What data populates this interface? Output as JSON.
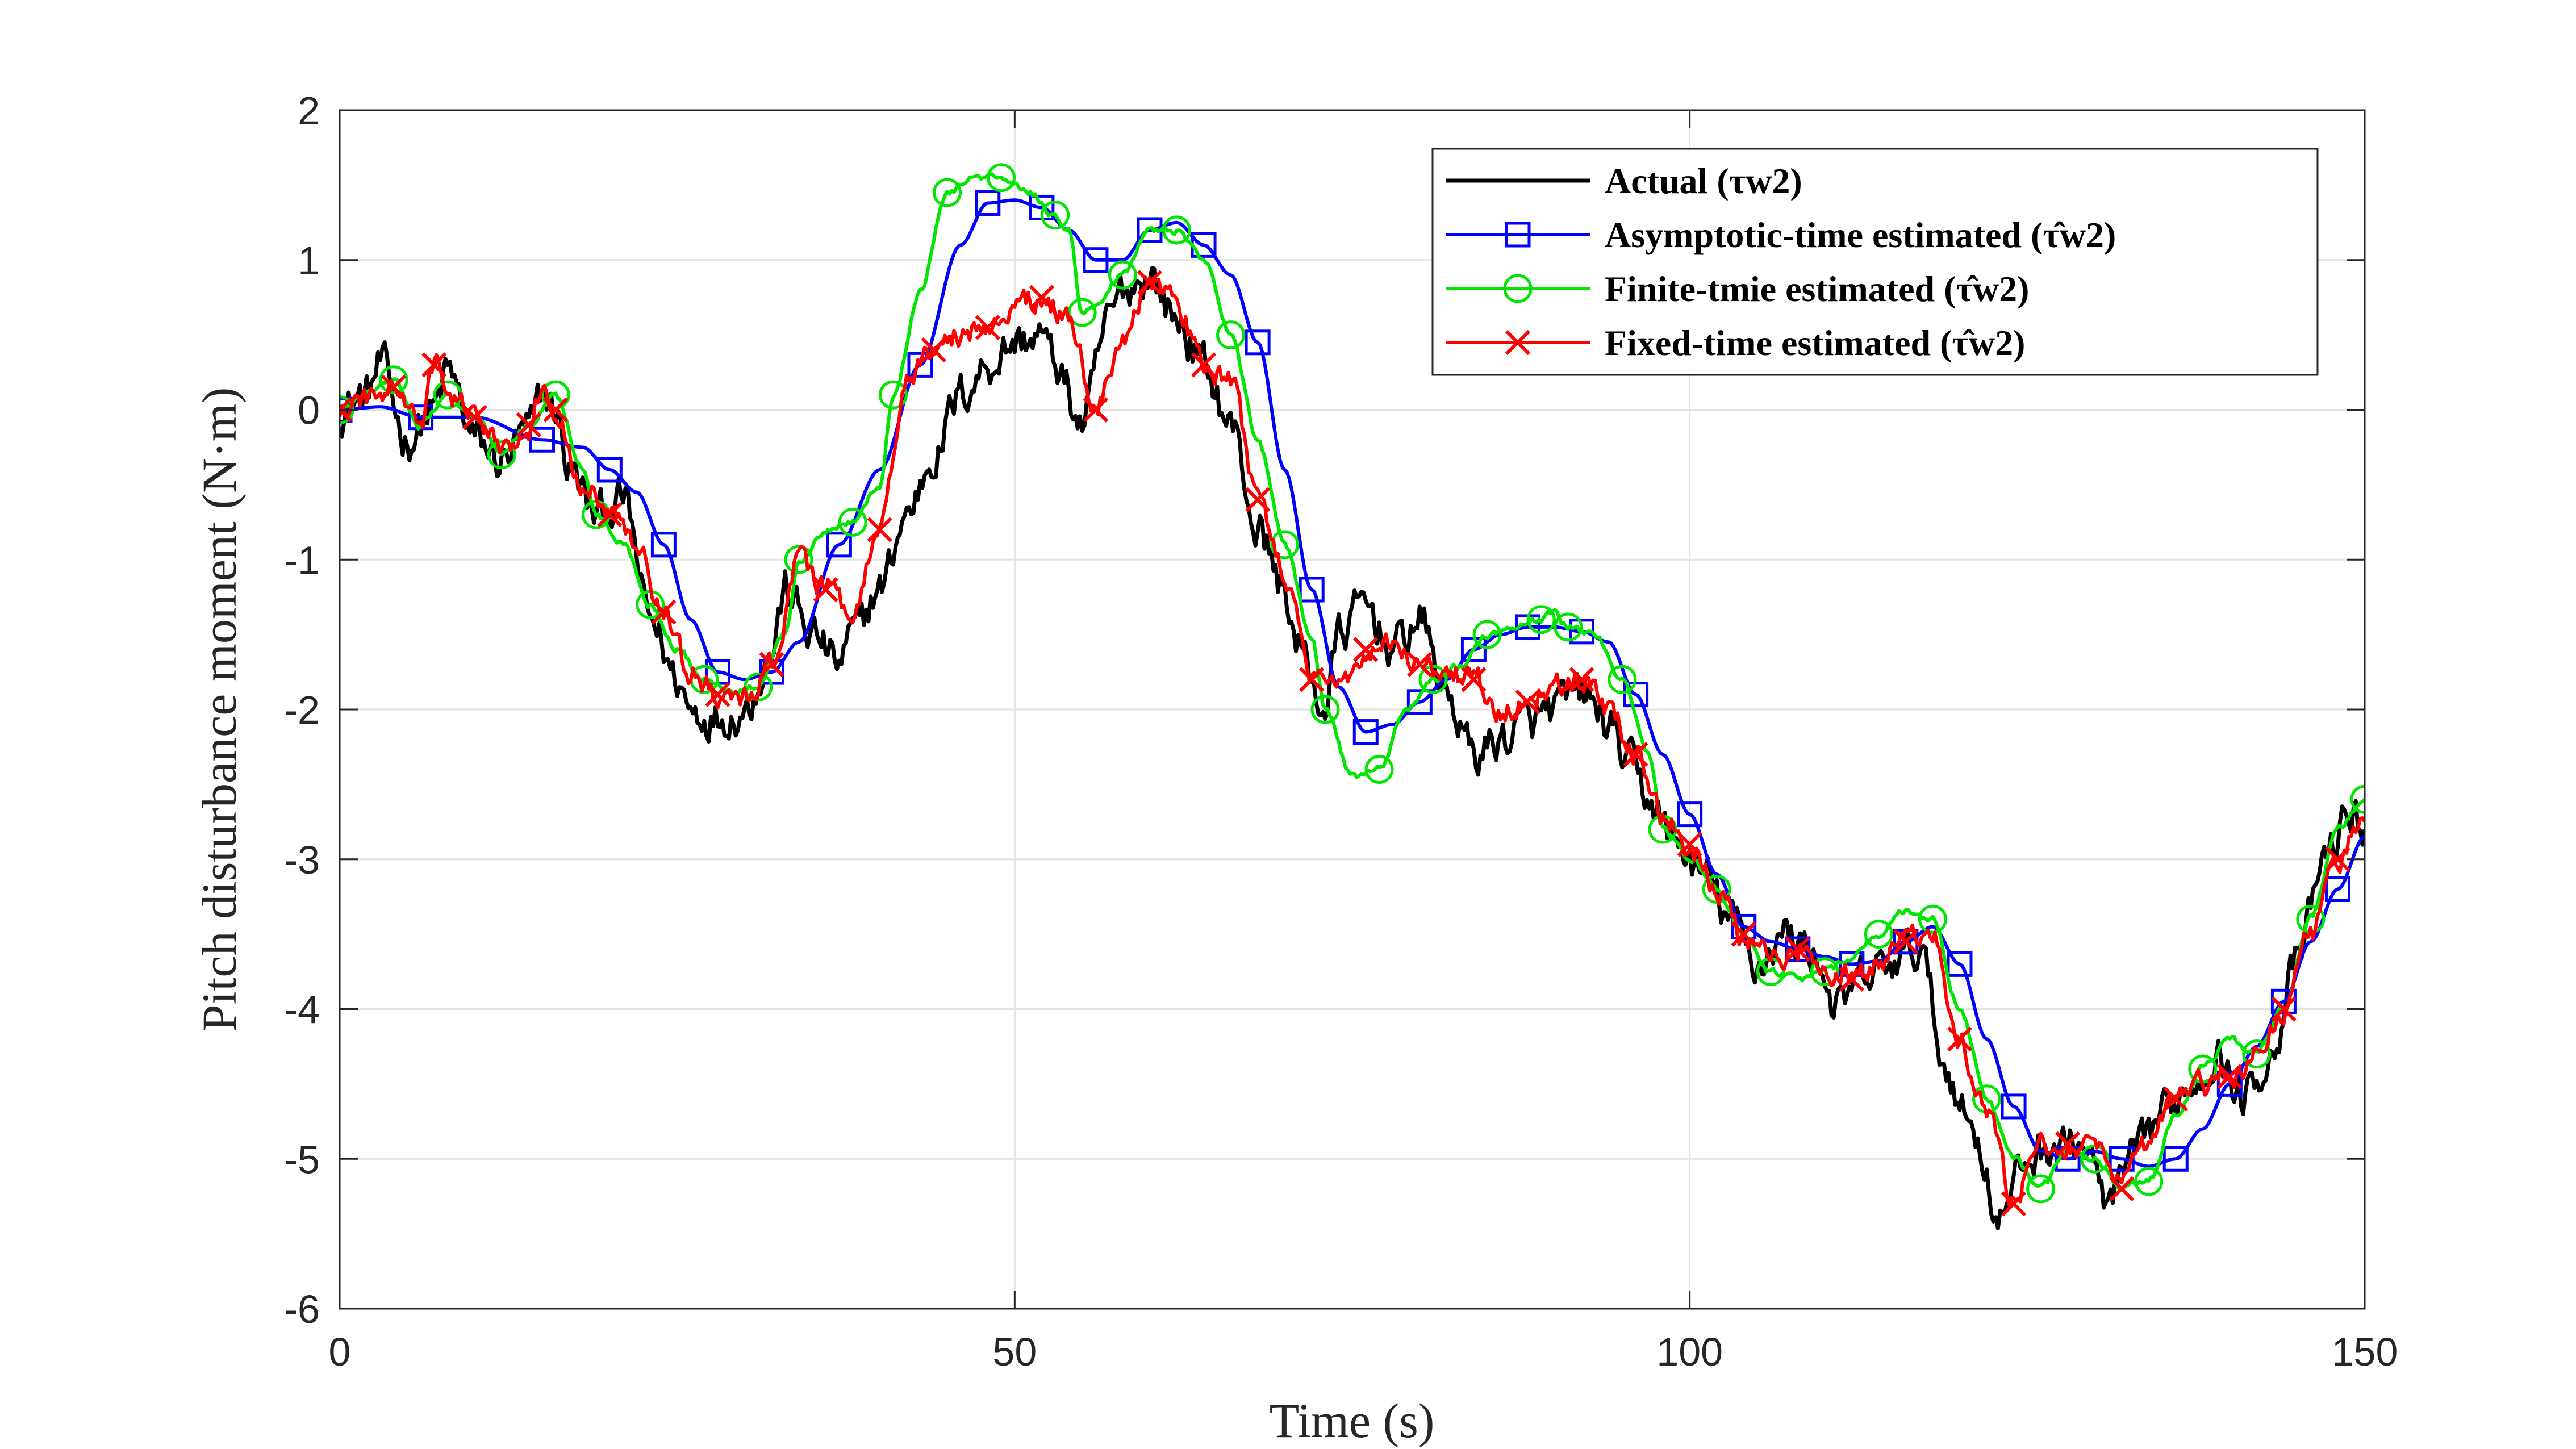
{
  "chart_data": {
    "type": "line",
    "xlabel": "Time (s)",
    "ylabel": "Pitch disturbance moment (N·m)",
    "xlim": [
      0,
      150
    ],
    "ylim": [
      -6,
      2
    ],
    "xticks": [
      0,
      50,
      100,
      150
    ],
    "yticks": [
      2,
      1,
      0,
      -1,
      -2,
      -3,
      -4,
      -5,
      -6
    ],
    "grid": true,
    "legend_position": "top-right",
    "series": [
      {
        "name": "Actual (τw2)",
        "color": "#000000",
        "marker": "none",
        "noise": 0.12,
        "x": [
          0,
          2,
          3,
          5,
          7,
          8,
          10,
          12,
          14,
          15,
          16,
          17,
          19,
          21,
          23,
          25,
          26,
          28,
          30,
          32,
          33,
          35,
          37,
          38,
          40,
          42,
          44,
          46,
          48,
          50,
          52,
          53,
          55,
          57,
          58,
          60,
          62,
          64,
          66,
          68,
          70,
          71,
          73,
          74,
          76,
          78,
          80,
          82,
          84,
          86,
          88,
          90,
          92,
          94,
          95,
          97,
          99,
          101,
          103,
          105,
          107,
          109,
          111,
          113,
          115,
          117,
          119,
          121,
          123,
          125,
          127,
          129,
          131,
          133,
          135,
          137,
          139,
          141,
          143,
          145,
          147,
          149,
          150
        ],
        "y": [
          0.0,
          0.1,
          0.3,
          -0.2,
          0.0,
          0.25,
          -0.2,
          -0.35,
          -0.15,
          0.1,
          0.0,
          -0.4,
          -0.7,
          -0.6,
          -1.4,
          -1.8,
          -2.0,
          -2.05,
          -2.0,
          -1.6,
          -1.2,
          -1.5,
          -1.7,
          -1.5,
          -1.2,
          -0.7,
          -0.3,
          0.1,
          0.3,
          0.45,
          0.5,
          0.3,
          -0.1,
          0.6,
          0.8,
          0.9,
          0.6,
          0.3,
          -0.1,
          -0.8,
          -1.2,
          -1.6,
          -2.0,
          -1.5,
          -1.3,
          -1.6,
          -1.4,
          -1.9,
          -2.3,
          -2.2,
          -2.1,
          -2.0,
          -1.9,
          -2.1,
          -2.3,
          -2.6,
          -2.9,
          -3.1,
          -3.4,
          -3.7,
          -3.5,
          -3.6,
          -4.0,
          -3.8,
          -3.7,
          -3.6,
          -4.4,
          -4.8,
          -5.4,
          -5.0,
          -4.9,
          -4.9,
          -5.3,
          -5.0,
          -4.7,
          -4.5,
          -4.3,
          -4.6,
          -4.3,
          -3.7,
          -3.0,
          -2.7,
          -2.8
        ]
      },
      {
        "name": "Asymptotic-time estimated (τ̂w2)",
        "color": "#0000FF",
        "marker": "square",
        "noise": 0,
        "x": [
          0,
          3,
          6,
          10,
          15,
          18,
          20,
          22,
          24,
          26,
          28,
          30,
          32,
          34,
          37,
          40,
          43,
          46,
          48,
          50,
          52,
          54,
          56,
          58,
          60,
          62,
          64,
          66,
          68,
          70,
          72,
          74,
          76,
          78,
          80,
          82,
          84,
          86,
          88,
          90,
          92,
          94,
          96,
          98,
          100,
          102,
          104,
          106,
          108,
          110,
          112,
          114,
          116,
          118,
          120,
          122,
          124,
          126,
          128,
          130,
          132,
          134,
          136,
          138,
          140,
          142,
          144,
          146,
          148,
          150
        ],
        "y": [
          0.0,
          0.02,
          -0.05,
          -0.05,
          -0.2,
          -0.25,
          -0.4,
          -0.55,
          -0.9,
          -1.4,
          -1.75,
          -1.8,
          -1.75,
          -1.55,
          -0.9,
          -0.4,
          0.3,
          1.1,
          1.38,
          1.4,
          1.35,
          1.2,
          1.0,
          1.0,
          1.2,
          1.25,
          1.1,
          0.9,
          0.45,
          -0.4,
          -1.2,
          -1.85,
          -2.15,
          -2.1,
          -1.95,
          -1.8,
          -1.6,
          -1.5,
          -1.45,
          -1.45,
          -1.48,
          -1.55,
          -1.9,
          -2.3,
          -2.7,
          -3.1,
          -3.45,
          -3.55,
          -3.6,
          -3.65,
          -3.7,
          -3.68,
          -3.55,
          -3.45,
          -3.7,
          -4.2,
          -4.65,
          -4.95,
          -5.0,
          -4.95,
          -5.0,
          -5.05,
          -5.0,
          -4.8,
          -4.5,
          -4.25,
          -3.95,
          -3.55,
          -3.2,
          -2.85
        ]
      },
      {
        "name": "Finite-tmie estimated (τ̂w2)",
        "color": "#00E600",
        "marker": "circle",
        "noise": 0.02,
        "x": [
          0,
          2,
          4,
          6,
          8,
          10,
          12,
          14,
          16,
          18,
          19,
          21,
          23,
          25,
          27,
          29,
          31,
          33,
          34,
          36,
          38,
          40,
          41,
          43,
          45,
          47,
          49,
          51,
          53,
          54,
          55,
          56,
          58,
          60,
          62,
          64,
          66,
          68,
          70,
          72,
          73,
          75,
          77,
          79,
          81,
          83,
          85,
          87,
          89,
          90,
          91,
          93,
          95,
          97,
          98,
          100,
          102,
          104,
          106,
          108,
          110,
          112,
          114,
          116,
          118,
          120,
          122,
          124,
          126,
          128,
          130,
          132,
          134,
          136,
          138,
          140,
          142,
          144,
          146,
          148,
          150
        ],
        "y": [
          0.0,
          0.1,
          0.2,
          -0.1,
          0.1,
          -0.05,
          -0.3,
          -0.1,
          0.1,
          -0.4,
          -0.7,
          -0.9,
          -1.3,
          -1.6,
          -1.8,
          -1.9,
          -1.85,
          -1.5,
          -1.0,
          -0.8,
          -0.75,
          -0.5,
          0.1,
          0.8,
          1.45,
          1.55,
          1.55,
          1.45,
          1.3,
          1.2,
          0.65,
          0.7,
          0.9,
          1.2,
          1.2,
          1.0,
          0.5,
          -0.2,
          -0.9,
          -1.5,
          -2.0,
          -2.45,
          -2.4,
          -2.0,
          -1.8,
          -1.7,
          -1.5,
          -1.45,
          -1.4,
          -1.35,
          -1.45,
          -1.5,
          -1.8,
          -2.3,
          -2.8,
          -3.0,
          -3.2,
          -3.5,
          -3.75,
          -3.8,
          -3.75,
          -3.65,
          -3.5,
          -3.35,
          -3.4,
          -4.0,
          -4.6,
          -5.0,
          -5.2,
          -4.95,
          -5.0,
          -5.2,
          -5.15,
          -4.7,
          -4.4,
          -4.2,
          -4.3,
          -4.0,
          -3.4,
          -2.8,
          -2.6
        ]
      },
      {
        "name": "Fixed-time estimated (τ̂w2)",
        "color": "#FF0000",
        "marker": "x",
        "noise": 0.07,
        "x": [
          0,
          2,
          4,
          6,
          7,
          8,
          10,
          12,
          14,
          15,
          16,
          18,
          20,
          22,
          24,
          26,
          28,
          30,
          32,
          34,
          36,
          38,
          40,
          42,
          44,
          46,
          48,
          50,
          52,
          54,
          56,
          58,
          60,
          62,
          64,
          66,
          68,
          70,
          72,
          74,
          76,
          78,
          80,
          82,
          84,
          86,
          88,
          90,
          92,
          94,
          96,
          98,
          100,
          102,
          104,
          106,
          108,
          110,
          112,
          114,
          116,
          118,
          120,
          122,
          124,
          126,
          128,
          130,
          132,
          134,
          136,
          138,
          140,
          142,
          144,
          146,
          148,
          150
        ],
        "y": [
          0.0,
          0.05,
          0.15,
          -0.1,
          0.3,
          0.1,
          -0.05,
          -0.25,
          -0.1,
          0.15,
          0.0,
          -0.5,
          -0.7,
          -0.9,
          -1.35,
          -1.75,
          -1.9,
          -1.95,
          -1.7,
          -1.0,
          -1.2,
          -1.4,
          -0.8,
          0.2,
          0.4,
          0.5,
          0.55,
          0.7,
          0.75,
          0.6,
          0.0,
          0.5,
          0.85,
          0.7,
          0.3,
          0.2,
          -0.6,
          -1.1,
          -1.8,
          -1.85,
          -1.6,
          -1.55,
          -1.7,
          -1.75,
          -1.8,
          -2.0,
          -1.95,
          -1.85,
          -1.8,
          -2.0,
          -2.3,
          -2.7,
          -2.9,
          -3.2,
          -3.5,
          -3.65,
          -3.6,
          -3.75,
          -3.8,
          -3.7,
          -3.55,
          -3.5,
          -4.2,
          -4.7,
          -5.3,
          -4.9,
          -4.9,
          -4.9,
          -5.2,
          -4.9,
          -4.6,
          -4.5,
          -4.45,
          -4.3,
          -4.0,
          -3.5,
          -3.0,
          -2.75
        ]
      }
    ]
  }
}
